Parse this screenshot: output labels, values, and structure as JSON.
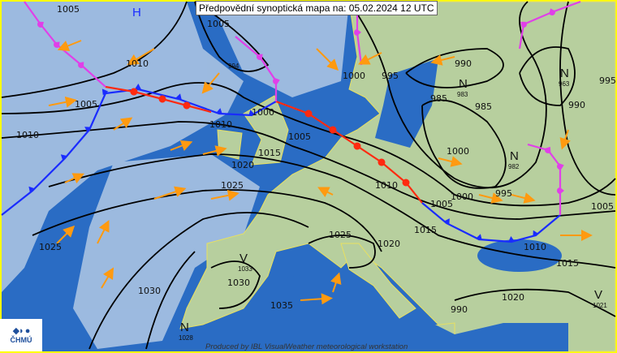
{
  "header": {
    "title": "Předpovědní synoptická mapa na: 05.02.2024 12 UTC"
  },
  "footer": {
    "credit": "Produced by IBL VisualWeather meteorological workstation",
    "logo_text": "ČHMÚ",
    "logo_mark": "◆◗ ●"
  },
  "colors": {
    "sea": "#2a6cc4",
    "cloud": "#a9c3e3",
    "land": "#b7cf9e",
    "isobar": "#000000",
    "cold_front": "#1a2cff",
    "warm_front": "#ff2a10",
    "occluded_front": "#e040e8",
    "wind_arrow": "#ff9a10",
    "border": "#ffff00"
  },
  "pressure_centers": [
    {
      "type": "H",
      "value": ""
    },
    {
      "type": "N",
      "value": "983"
    },
    {
      "type": "N",
      "value": "963"
    },
    {
      "type": "N",
      "value": "982"
    },
    {
      "type": "N",
      "value": "1028"
    },
    {
      "type": "V",
      "value": "1033"
    },
    {
      "type": "V",
      "value": "1021"
    },
    {
      "type": "",
      "value": "994"
    }
  ],
  "isobar_labels": [
    "1005",
    "1010",
    "1005",
    "1010",
    "1020",
    "1025",
    "1025",
    "1030",
    "1015",
    "1010",
    "1005",
    "1000",
    "1005",
    "990",
    "985",
    "985",
    "1000",
    "995",
    "1000",
    "1005",
    "1010",
    "1015",
    "1010",
    "1015",
    "1005",
    "995",
    "990",
    "1020",
    "1025",
    "1020",
    "1030",
    "1035",
    "995",
    "1000",
    "990"
  ]
}
